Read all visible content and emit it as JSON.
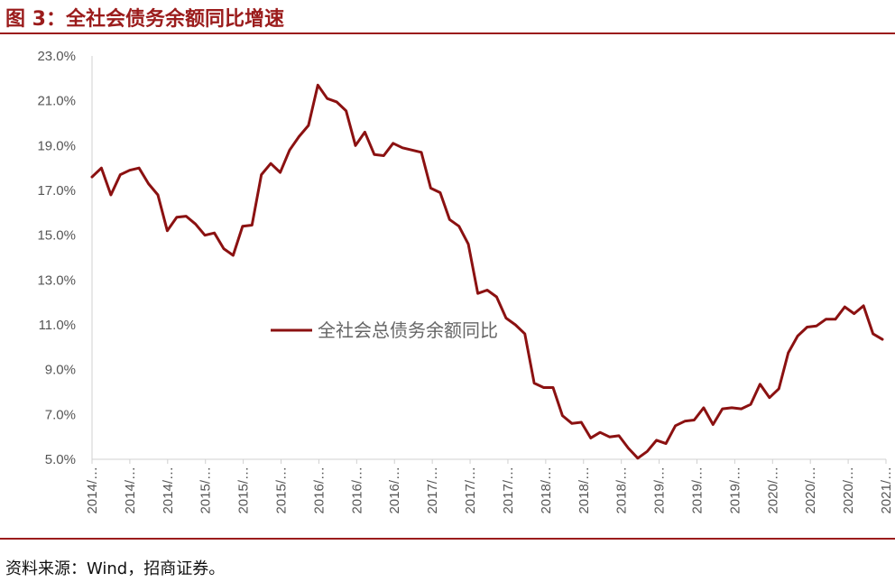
{
  "header": {
    "title": "图 3：全社会债务余额同比增速"
  },
  "footer": {
    "source": "资料来源：Wind，招商证券。"
  },
  "colors": {
    "accent": "#9b1c1c",
    "line": "#8b1111",
    "axis": "#d0d0d0"
  },
  "chart_data": {
    "type": "line",
    "title": "图 3：全社会债务余额同比增速",
    "ylabel": "",
    "xlabel": "",
    "ylim": [
      5.0,
      23.0
    ],
    "y_ticks": [
      "5.0%",
      "7.0%",
      "9.0%",
      "11.0%",
      "13.0%",
      "15.0%",
      "17.0%",
      "19.0%",
      "21.0%",
      "23.0%"
    ],
    "x_tick_labels": [
      "2014/…",
      "2014/…",
      "2014/…",
      "2015/…",
      "2015/…",
      "2015/…",
      "2016/…",
      "2016/…",
      "2016/…",
      "2017/…",
      "2017/…",
      "2017/…",
      "2018/…",
      "2018/…",
      "2018/…",
      "2019/…",
      "2019/…",
      "2019/…",
      "2020/…",
      "2020/…",
      "2020/…",
      "2021/…"
    ],
    "legend": {
      "position": "center"
    },
    "grid": false,
    "series": [
      {
        "name": "全社会总债务余额同比",
        "values": [
          17.6,
          18.0,
          16.8,
          17.7,
          17.9,
          18.0,
          17.3,
          16.8,
          15.2,
          15.8,
          15.85,
          15.5,
          15.0,
          15.1,
          14.4,
          14.1,
          15.4,
          15.45,
          17.7,
          18.2,
          17.8,
          18.8,
          19.4,
          19.9,
          21.7,
          21.1,
          20.95,
          20.55,
          19.0,
          19.6,
          18.6,
          18.55,
          19.1,
          18.9,
          18.8,
          18.7,
          17.1,
          16.9,
          15.7,
          15.4,
          14.6,
          12.4,
          12.55,
          12.25,
          11.3,
          11.0,
          10.6,
          8.4,
          8.2,
          8.2,
          6.95,
          6.6,
          6.65,
          5.95,
          6.2,
          6.0,
          6.05,
          5.5,
          5.05,
          5.35,
          5.85,
          5.7,
          6.5,
          6.7,
          6.75,
          7.3,
          6.55,
          7.25,
          7.3,
          7.25,
          7.45,
          8.35,
          7.75,
          8.15,
          9.75,
          10.5,
          10.9,
          10.95,
          11.25,
          11.25,
          11.8,
          11.5,
          11.85,
          10.6,
          10.35
        ]
      }
    ]
  }
}
